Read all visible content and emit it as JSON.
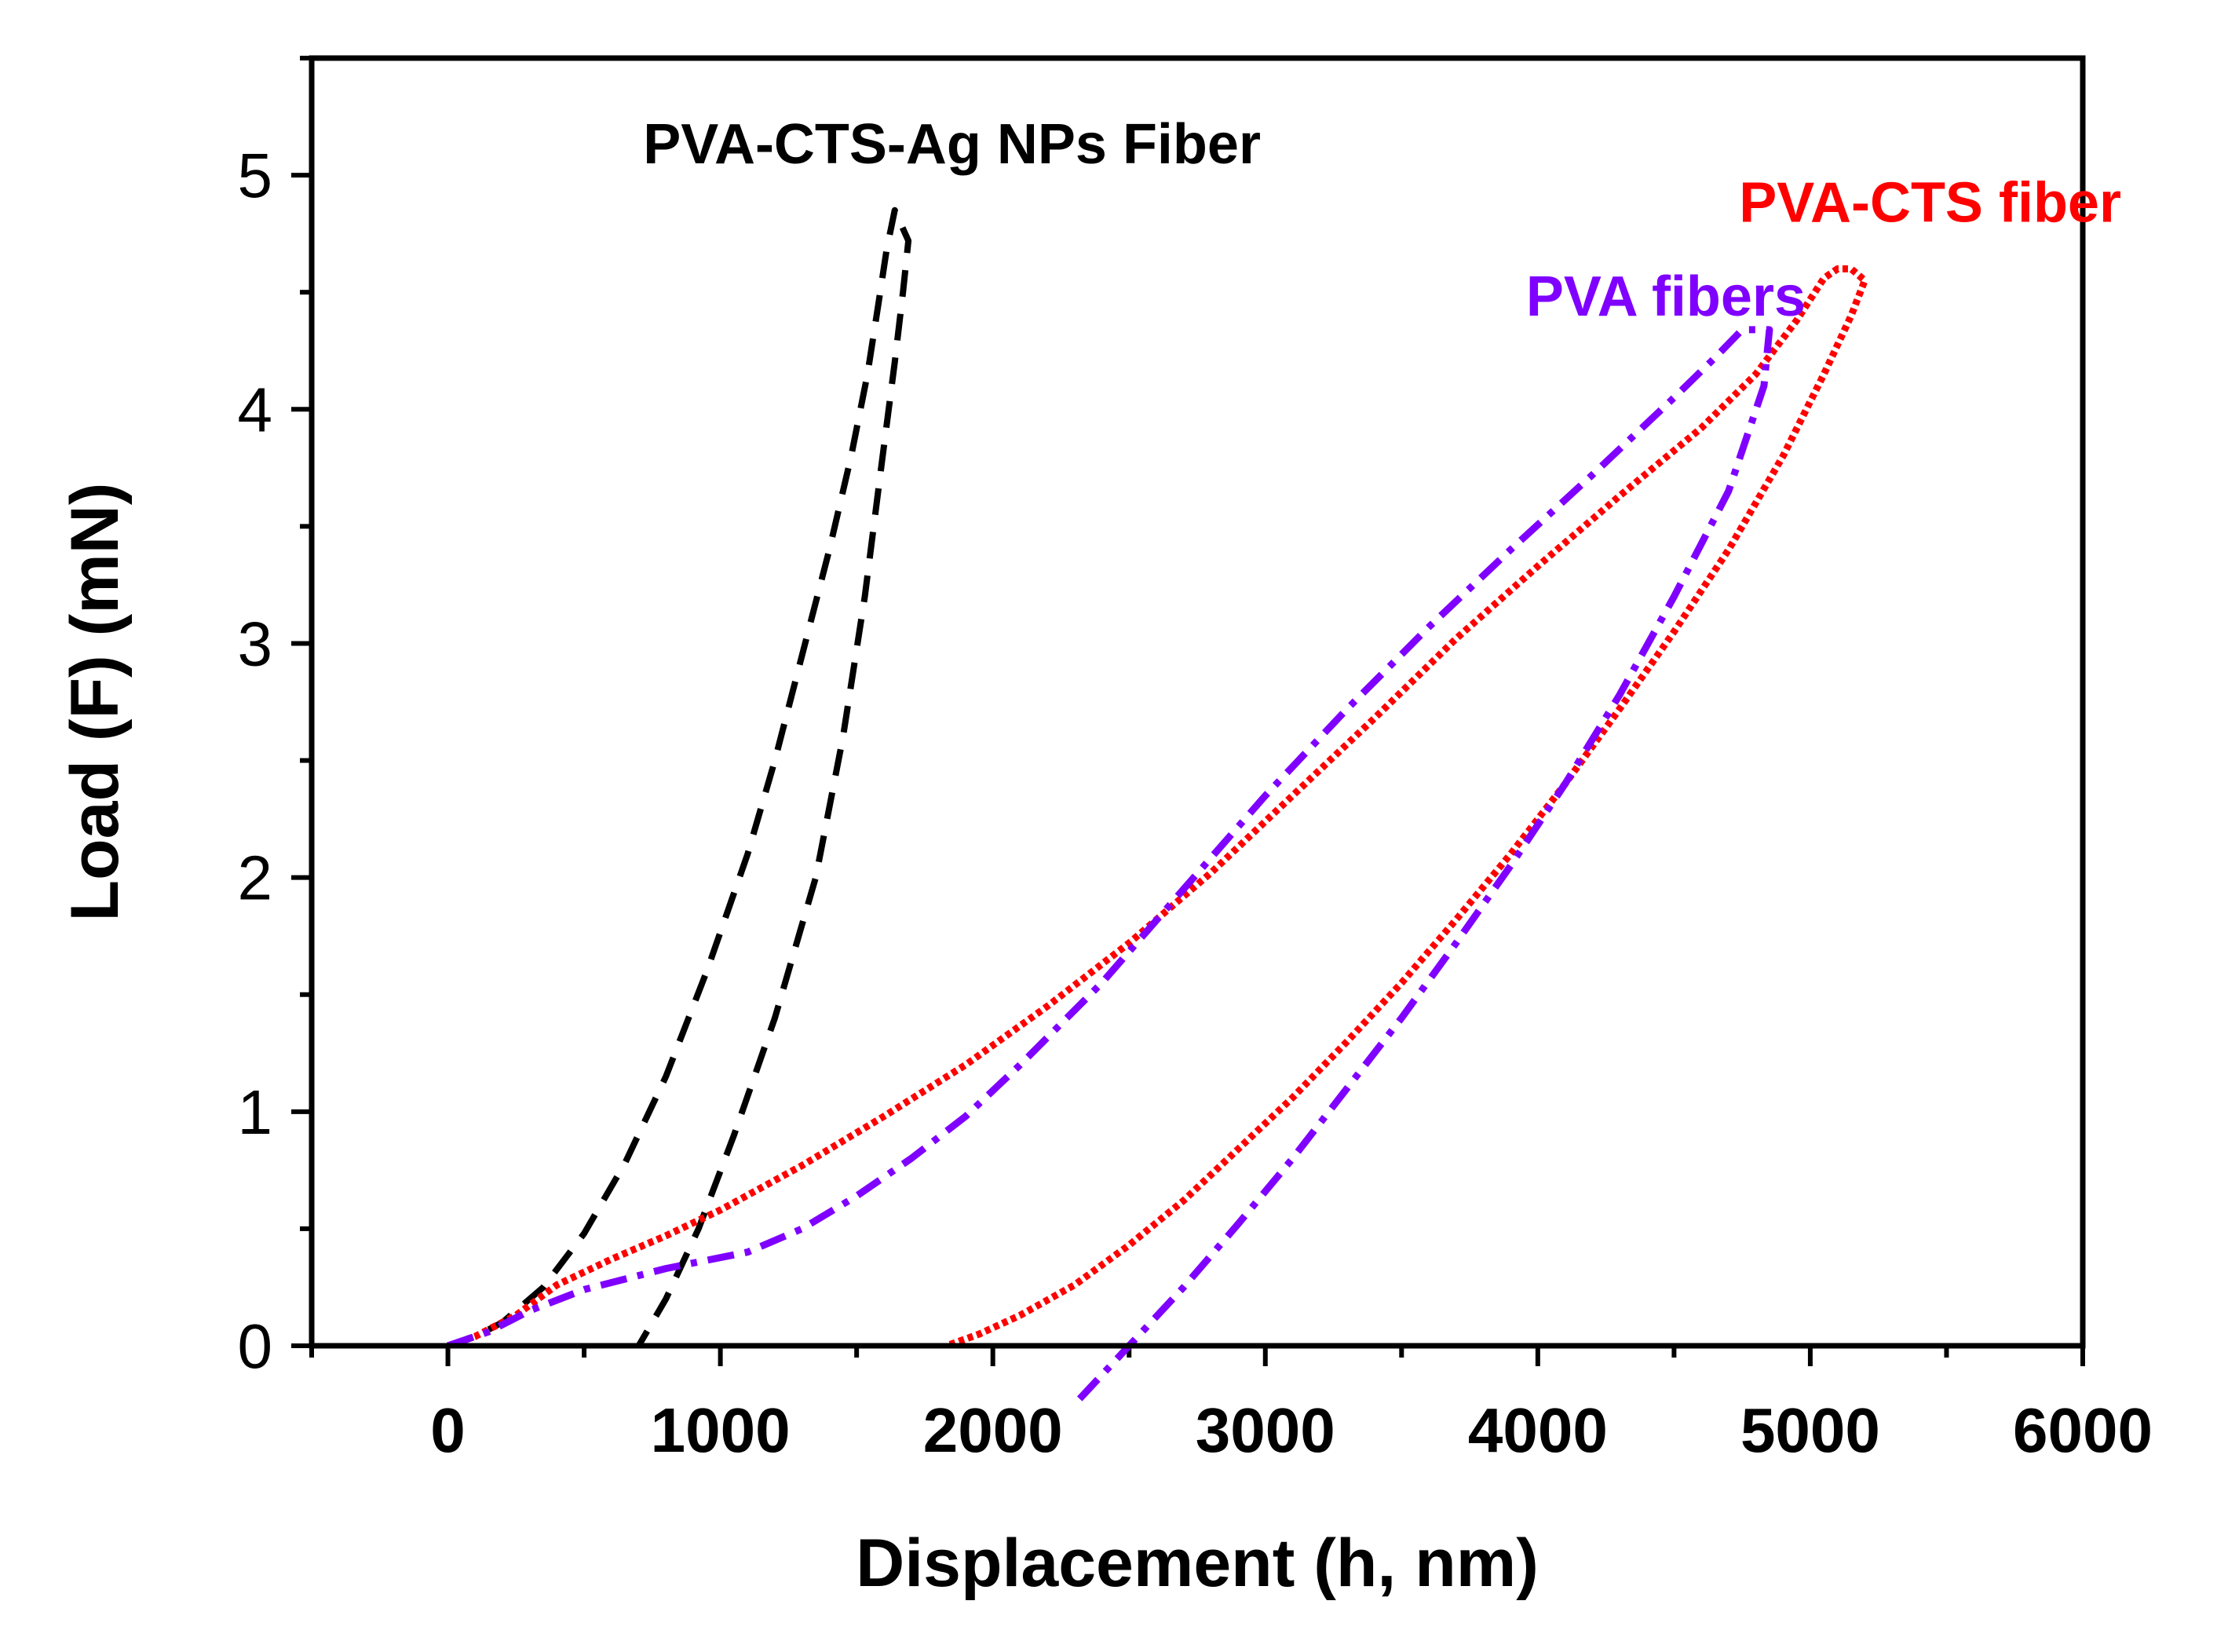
{
  "chart_data": {
    "type": "line",
    "title": "",
    "xlabel": "Displacement (h, nm)",
    "ylabel": "Load (F) (mN)",
    "xlim": [
      -500,
      6000
    ],
    "ylim": [
      0,
      5.5
    ],
    "x_ticks": [
      0,
      1000,
      2000,
      3000,
      4000,
      5000,
      6000
    ],
    "x_tick_labels": [
      "0",
      "1000",
      "2000",
      "3000",
      "4000",
      "5000",
      "6000"
    ],
    "y_ticks": [
      0,
      1,
      2,
      3,
      4,
      5
    ],
    "y_tick_labels": [
      "0",
      "1",
      "2",
      "3",
      "4",
      "5"
    ],
    "grid": false,
    "legend": "inline labels",
    "series": [
      {
        "name": "PVA-CTS-Ag NPs Fiber",
        "color": "#000000",
        "style": "dashed",
        "label_anchor": [
          1850,
          5.05
        ],
        "loading": [
          [
            0,
            0
          ],
          [
            100,
            0.04
          ],
          [
            200,
            0.1
          ],
          [
            350,
            0.25
          ],
          [
            500,
            0.48
          ],
          [
            650,
            0.78
          ],
          [
            800,
            1.15
          ],
          [
            950,
            1.6
          ],
          [
            1100,
            2.1
          ],
          [
            1200,
            2.5
          ],
          [
            1300,
            2.95
          ],
          [
            1400,
            3.4
          ],
          [
            1480,
            3.8
          ],
          [
            1540,
            4.15
          ],
          [
            1580,
            4.45
          ],
          [
            1610,
            4.68
          ],
          [
            1640,
            4.85
          ],
          [
            1690,
            4.72
          ]
        ],
        "unloading": [
          [
            1690,
            4.72
          ],
          [
            1670,
            4.5
          ],
          [
            1640,
            4.2
          ],
          [
            1590,
            3.75
          ],
          [
            1530,
            3.2
          ],
          [
            1450,
            2.6
          ],
          [
            1350,
            2.0
          ],
          [
            1200,
            1.4
          ],
          [
            1050,
            0.9
          ],
          [
            920,
            0.5
          ],
          [
            800,
            0.2
          ],
          [
            700,
            0
          ]
        ]
      },
      {
        "name": "PVA-CTS fiber",
        "color": "#ff0000",
        "style": "dotted",
        "label_anchor": [
          5440,
          4.8
        ],
        "loading": [
          [
            0,
            0
          ],
          [
            100,
            0.04
          ],
          [
            250,
            0.13
          ],
          [
            400,
            0.26
          ],
          [
            600,
            0.37
          ],
          [
            800,
            0.47
          ],
          [
            1000,
            0.58
          ],
          [
            1300,
            0.77
          ],
          [
            1600,
            0.98
          ],
          [
            1900,
            1.2
          ],
          [
            2200,
            1.45
          ],
          [
            2500,
            1.72
          ],
          [
            2800,
            2.02
          ],
          [
            3100,
            2.35
          ],
          [
            3400,
            2.68
          ],
          [
            3700,
            3.02
          ],
          [
            4000,
            3.33
          ],
          [
            4300,
            3.63
          ],
          [
            4600,
            3.92
          ],
          [
            4800,
            4.15
          ],
          [
            4950,
            4.38
          ],
          [
            5050,
            4.56
          ],
          [
            5100,
            4.6
          ],
          [
            5150,
            4.6
          ],
          [
            5200,
            4.55
          ]
        ],
        "unloading": [
          [
            5200,
            4.55
          ],
          [
            5150,
            4.4
          ],
          [
            5050,
            4.15
          ],
          [
            4900,
            3.8
          ],
          [
            4700,
            3.4
          ],
          [
            4500,
            3.05
          ],
          [
            4300,
            2.72
          ],
          [
            4100,
            2.4
          ],
          [
            3900,
            2.1
          ],
          [
            3700,
            1.82
          ],
          [
            3500,
            1.55
          ],
          [
            3300,
            1.3
          ],
          [
            3100,
            1.06
          ],
          [
            2900,
            0.84
          ],
          [
            2700,
            0.62
          ],
          [
            2500,
            0.43
          ],
          [
            2300,
            0.26
          ],
          [
            2100,
            0.13
          ],
          [
            1950,
            0.05
          ],
          [
            1830,
            0
          ]
        ]
      },
      {
        "name": "PVA fibers",
        "color": "#7f00ff",
        "style": "dashdot",
        "label_anchor": [
          4470,
          4.4
        ],
        "loading": [
          [
            0,
            0
          ],
          [
            150,
            0.06
          ],
          [
            300,
            0.15
          ],
          [
            500,
            0.24
          ],
          [
            800,
            0.33
          ],
          [
            1100,
            0.4
          ],
          [
            1300,
            0.5
          ],
          [
            1500,
            0.64
          ],
          [
            1700,
            0.8
          ],
          [
            1900,
            0.98
          ],
          [
            2100,
            1.2
          ],
          [
            2400,
            1.55
          ],
          [
            2700,
            1.95
          ],
          [
            3000,
            2.35
          ],
          [
            3300,
            2.72
          ],
          [
            3600,
            3.07
          ],
          [
            3900,
            3.4
          ],
          [
            4200,
            3.72
          ],
          [
            4500,
            4.05
          ],
          [
            4650,
            4.22
          ],
          [
            4750,
            4.34
          ],
          [
            4850,
            4.34
          ]
        ],
        "unloading": [
          [
            4850,
            4.34
          ],
          [
            4830,
            4.1
          ],
          [
            4700,
            3.65
          ],
          [
            4500,
            3.2
          ],
          [
            4300,
            2.78
          ],
          [
            4100,
            2.4
          ],
          [
            3900,
            2.05
          ],
          [
            3700,
            1.72
          ],
          [
            3500,
            1.4
          ],
          [
            3300,
            1.1
          ],
          [
            3100,
            0.8
          ],
          [
            2900,
            0.52
          ],
          [
            2700,
            0.25
          ],
          [
            2500,
            0
          ],
          [
            2300,
            -0.25
          ]
        ]
      }
    ]
  }
}
